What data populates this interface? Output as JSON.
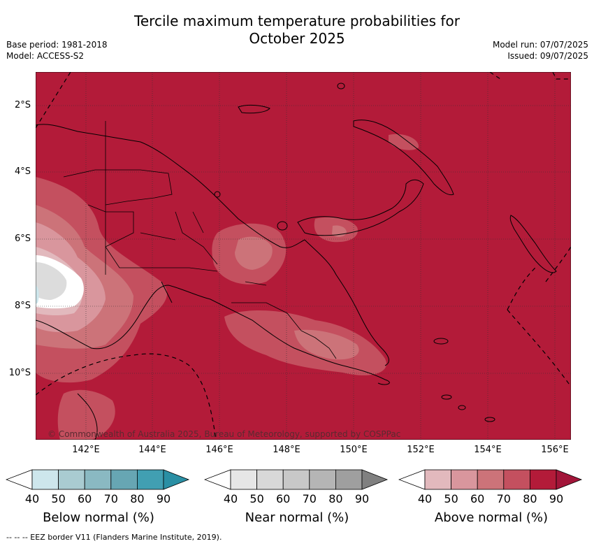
{
  "title_line1": "Tercile maximum temperature probabilities for",
  "title_line2": "October 2025",
  "meta_left": {
    "base_period": "Base period: 1981-2018",
    "model": "Model: ACCESS-S2"
  },
  "meta_right": {
    "model_run": "Model run: 07/07/2025",
    "issued": "Issued: 09/07/2025"
  },
  "map": {
    "lat_labels": [
      "2°S",
      "4°S",
      "6°S",
      "8°S",
      "10°S"
    ],
    "lon_labels": [
      "142°E",
      "144°E",
      "146°E",
      "148°E",
      "150°E",
      "152°E",
      "154°E",
      "156°E"
    ],
    "colors": {
      "above_90": "#b31b39",
      "above_80": "#c4505f",
      "above_70": "#cc7379",
      "above_60": "#d9969d",
      "above_50": "#e2b9bd",
      "neutral": "#ffffff",
      "below_50": "#cde6ec"
    },
    "copyright": "© Commonwealth of Australia 2025, Bureau of Meteorology, supported by COSPPac"
  },
  "colorbars": [
    {
      "label": "Below normal (%)",
      "ticks": [
        "40",
        "50",
        "60",
        "70",
        "80",
        "90"
      ],
      "colors": [
        "#ffffff",
        "#cde6ec",
        "#a9cbd1",
        "#8ab9c2",
        "#67a6b3",
        "#419fb2",
        "#2a8fa4"
      ]
    },
    {
      "label": "Near normal (%)",
      "ticks": [
        "40",
        "50",
        "60",
        "70",
        "80",
        "90"
      ],
      "colors": [
        "#ffffff",
        "#e6e6e6",
        "#d8d8d8",
        "#c8c8c8",
        "#b5b5b5",
        "#9f9f9f",
        "#808080"
      ]
    },
    {
      "label": "Above normal (%)",
      "ticks": [
        "40",
        "50",
        "60",
        "70",
        "80",
        "90"
      ],
      "colors": [
        "#ffffff",
        "#e2b9bd",
        "#d9969d",
        "#cc7379",
        "#c4505f",
        "#b31b39",
        "#a21539"
      ]
    }
  ],
  "footer": "--  --  -- EEZ border V11 (Flanders Marine Institute, 2019)."
}
